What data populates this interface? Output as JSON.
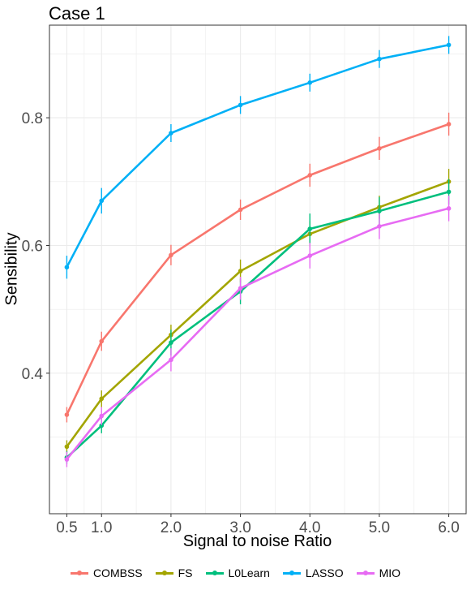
{
  "chart_data": {
    "type": "line",
    "title": "Case 1",
    "xlabel": "Signal to noise Ratio",
    "ylabel": "Sensibility",
    "x": [
      0.5,
      1.0,
      2.0,
      3.0,
      4.0,
      5.0,
      6.0
    ],
    "x_tick_labels": [
      "0.5",
      "1.0",
      "2.0",
      "3.0",
      "4.0",
      "5.0",
      "6.0"
    ],
    "y_ticks": [
      0.4,
      0.6,
      0.8
    ],
    "y_tick_labels": [
      "0.4",
      "0.6",
      "0.8"
    ],
    "xlim": [
      0.25,
      6.25
    ],
    "ylim": [
      0.18,
      0.945
    ],
    "grid": true,
    "error_bars": true,
    "legend_position": "bottom",
    "series": [
      {
        "name": "COMBSS",
        "color": "#F8766D",
        "values": [
          0.335,
          0.45,
          0.585,
          0.656,
          0.71,
          0.752,
          0.79
        ],
        "errors": [
          0.012,
          0.015,
          0.016,
          0.016,
          0.018,
          0.018,
          0.018
        ]
      },
      {
        "name": "FS",
        "color": "#A3A500",
        "values": [
          0.285,
          0.36,
          0.46,
          0.56,
          0.618,
          0.66,
          0.7
        ],
        "errors": [
          0.01,
          0.013,
          0.016,
          0.018,
          0.02,
          0.018,
          0.02
        ]
      },
      {
        "name": "L0Learn",
        "color": "#00BF7D",
        "values": [
          0.268,
          0.318,
          0.448,
          0.528,
          0.626,
          0.654,
          0.684
        ],
        "errors": [
          0.01,
          0.012,
          0.02,
          0.02,
          0.024,
          0.022,
          0.02
        ]
      },
      {
        "name": "LASSO",
        "color": "#00B0F6",
        "values": [
          0.566,
          0.67,
          0.776,
          0.82,
          0.855,
          0.892,
          0.914
        ],
        "errors": [
          0.018,
          0.02,
          0.014,
          0.014,
          0.014,
          0.014,
          0.014
        ]
      },
      {
        "name": "MIO",
        "color": "#E76BF3",
        "values": [
          0.265,
          0.333,
          0.421,
          0.533,
          0.584,
          0.63,
          0.658
        ],
        "errors": [
          0.012,
          0.014,
          0.018,
          0.018,
          0.02,
          0.02,
          0.02
        ]
      }
    ]
  }
}
